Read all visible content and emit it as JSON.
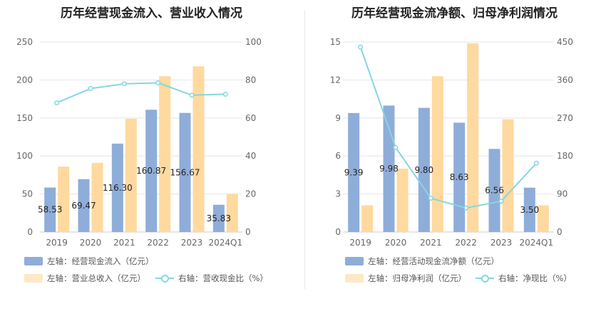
{
  "chart_data": [
    {
      "type": "bar",
      "title": "历年经营现金流入、营业收入情况",
      "categories": [
        "2019",
        "2020",
        "2021",
        "2022",
        "2023",
        "2024Q1"
      ],
      "series": [
        {
          "name": "左轴：经营现金流入（亿元）",
          "axis": "left",
          "type": "bar",
          "color": "#8fadd9",
          "values": [
            58.53,
            69.47,
            116.3,
            160.87,
            156.67,
            35.83
          ],
          "labels": [
            "58.53",
            "69.47",
            "116.30",
            "160.87",
            "156.67",
            "35.83"
          ]
        },
        {
          "name": "左轴：营业总收入（亿元）",
          "axis": "left",
          "type": "bar",
          "color": "#ffd99e",
          "values": [
            86,
            91,
            149,
            205,
            218,
            50
          ]
        },
        {
          "name": "右轴：营收现金比（%）",
          "axis": "right",
          "type": "line",
          "color": "#86d6e0",
          "values": [
            68,
            75.5,
            78,
            78.5,
            72,
            72.5
          ]
        }
      ],
      "left_axis": {
        "min": 0,
        "max": 250,
        "ticks": [
          0,
          50,
          100,
          150,
          200,
          250
        ]
      },
      "right_axis": {
        "min": 0,
        "max": 100,
        "ticks": [
          0,
          20,
          40,
          60,
          80,
          100
        ]
      },
      "grid": true
    },
    {
      "type": "bar",
      "title": "历年经营现金流净额、归母净利润情况",
      "categories": [
        "2019",
        "2020",
        "2021",
        "2022",
        "2023",
        "2024Q1"
      ],
      "series": [
        {
          "name": "左轴：经营活动现金流净额（亿元）",
          "axis": "left",
          "type": "bar",
          "color": "#8fadd9",
          "values": [
            9.39,
            9.98,
            9.8,
            8.63,
            6.56,
            3.5
          ],
          "labels": [
            "9.39",
            "9.98",
            "9.80",
            "8.63",
            "6.56",
            "3.50"
          ]
        },
        {
          "name": "左轴：归母净利润（亿元）",
          "axis": "left",
          "type": "bar",
          "color": "#ffd99e",
          "values": [
            2.1,
            5.0,
            12.3,
            14.9,
            8.9,
            2.1
          ]
        },
        {
          "name": "右轴：净现比（%）",
          "axis": "right",
          "type": "line",
          "color": "#86d6e0",
          "values": [
            438,
            200,
            80,
            57,
            73,
            163
          ]
        }
      ],
      "left_axis": {
        "min": 0,
        "max": 15,
        "ticks": [
          0,
          3,
          6,
          9,
          12,
          15
        ]
      },
      "right_axis": {
        "min": 0,
        "max": 450,
        "ticks": [
          0,
          90,
          180,
          270,
          360,
          450
        ]
      },
      "grid": true
    }
  ]
}
